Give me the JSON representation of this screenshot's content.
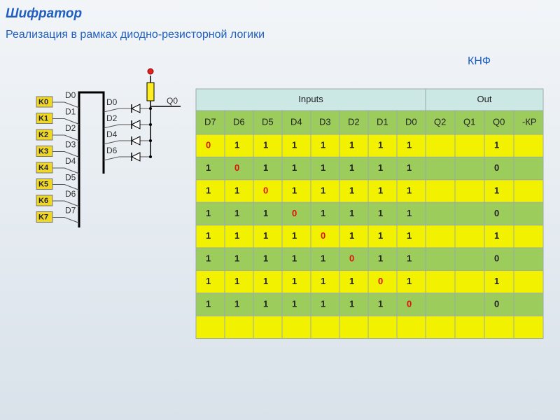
{
  "header": {
    "title": "Шифратор",
    "subtitle": "Реализация в рамках диодно-резисторной логики",
    "form": "КНФ"
  },
  "diagram": {
    "keys": [
      "K0",
      "K1",
      "K2",
      "K3",
      "K4",
      "K5",
      "K6",
      "K7"
    ],
    "left_lines": [
      "D0",
      "D1",
      "D2",
      "D3",
      "D4",
      "D5",
      "D6",
      "D7"
    ],
    "right_lines": [
      "D0",
      "D2",
      "D4",
      "D6"
    ],
    "output": "Q0"
  },
  "table": {
    "groups": [
      "Inputs",
      "Out"
    ],
    "columns": [
      "D7",
      "D6",
      "D5",
      "D4",
      "D3",
      "D2",
      "D1",
      "D0",
      "Q2",
      "Q1",
      "Q0",
      "-КР"
    ],
    "rows": [
      [
        0,
        1,
        1,
        1,
        1,
        1,
        1,
        1,
        null,
        null,
        1,
        null
      ],
      [
        1,
        0,
        1,
        1,
        1,
        1,
        1,
        1,
        null,
        null,
        0,
        null
      ],
      [
        1,
        1,
        0,
        1,
        1,
        1,
        1,
        1,
        null,
        null,
        1,
        null
      ],
      [
        1,
        1,
        1,
        0,
        1,
        1,
        1,
        1,
        null,
        null,
        0,
        null
      ],
      [
        1,
        1,
        1,
        1,
        0,
        1,
        1,
        1,
        null,
        null,
        1,
        null
      ],
      [
        1,
        1,
        1,
        1,
        1,
        0,
        1,
        1,
        null,
        null,
        0,
        null
      ],
      [
        1,
        1,
        1,
        1,
        1,
        1,
        0,
        1,
        null,
        null,
        1,
        null
      ],
      [
        1,
        1,
        1,
        1,
        1,
        1,
        1,
        0,
        null,
        null,
        0,
        null
      ]
    ]
  }
}
